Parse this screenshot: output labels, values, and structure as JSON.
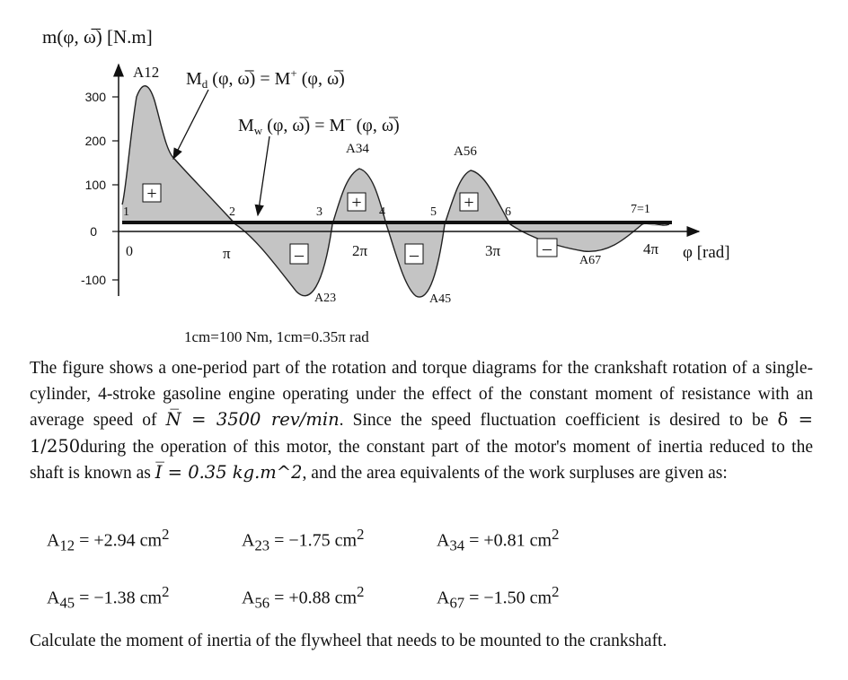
{
  "figure": {
    "y_axis_label": "m(φ, ω̅) [N.m]",
    "x_axis_label": "φ [rad]",
    "y_ticks": [
      "300",
      "200",
      "100",
      "0",
      "-100"
    ],
    "pi_ticks": [
      "π",
      "2π",
      "3π",
      "4π"
    ],
    "point_labels": [
      "1",
      "2",
      "3",
      "4",
      "5",
      "6",
      "7=1"
    ],
    "origin_label": "0",
    "curve_labels": {
      "Md": "M",
      "Md_sub": "d",
      "Md_rest": " (φ, ω̅) = M",
      "Md_sup": "+",
      "Md_end": " (φ, ω̅)",
      "Mw": "M",
      "Mw_sub": "w",
      "Mw_rest": " (φ, ω̅) = M",
      "Mw_sup": "−",
      "Mw_end": " (φ, ω̅)"
    },
    "area_labels": [
      "A12",
      "A23",
      "A34",
      "A45",
      "A56",
      "A67"
    ],
    "signs": {
      "plus": "+",
      "minus": "–"
    },
    "scale_note": "1cm=100 Nm, 1cm=0.35π rad"
  },
  "problem": {
    "intro": "The figure shows a one-period part of the rotation and torque diagrams for the crankshaft rotation of a single-cylinder, 4-stroke gasoline engine operating under the effect of the constant moment of resistance with an average speed of",
    "speed": "N̅ = 3500 rev/min",
    "mid": ". Since the speed fluctuation coefficient is desired to be",
    "delta": "δ = 1/250",
    "mid2": "during the operation of this motor, the constant part of the motor's moment of inertia reduced to the shaft is known as",
    "inertia": "I̅ = 0.35 kg.m^2",
    "end": ", and the area equivalents of the work surpluses are given as:",
    "areas": [
      {
        "name": "A",
        "sub": "12",
        "value": " = +2.94 cm",
        "sup": "2"
      },
      {
        "name": "A",
        "sub": "23",
        "value": " = −1.75 cm",
        "sup": "2"
      },
      {
        "name": "A",
        "sub": "34",
        "value": " = +0.81 cm",
        "sup": "2"
      },
      {
        "name": "A",
        "sub": "45",
        "value": " = −1.38 cm",
        "sup": "2"
      },
      {
        "name": "A",
        "sub": "56",
        "value": " = +0.88 cm",
        "sup": "2"
      },
      {
        "name": "A",
        "sub": "67",
        "value": " = −1.50 cm",
        "sup": "2"
      }
    ],
    "question": "Calculate the moment of inertia of the flywheel that needs to be mounted to the crankshaft."
  }
}
